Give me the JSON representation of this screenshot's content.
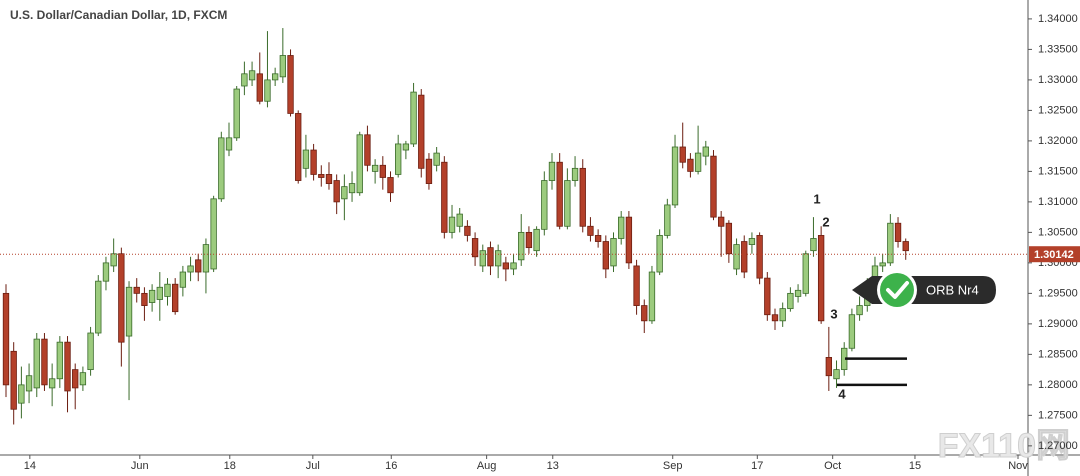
{
  "chart_data": {
    "type": "candlestick",
    "title": "U.S. Dollar/Canadian Dollar, 1D, FXCM",
    "up_color": "#9ccb7e",
    "down_color": "#b3402a",
    "open": [
      1.295,
      1.2855,
      1.277,
      1.279,
      1.2795,
      1.2875,
      1.2795,
      1.281,
      1.287,
      1.2825,
      1.28,
      1.2825,
      1.2885,
      1.297,
      1.2995,
      1.3015,
      1.288,
      1.296,
      1.295,
      1.2935,
      1.294,
      1.2945,
      1.2965,
      1.296,
      1.2985,
      1.3005,
      1.2985,
      1.299,
      1.3105,
      1.3185,
      1.3205,
      1.329,
      1.33,
      1.331,
      1.3265,
      1.33,
      1.3305,
      1.334,
      1.3245,
      1.3155,
      1.3185,
      1.3145,
      1.3145,
      1.3135,
      1.3105,
      1.3115,
      1.3115,
      1.321,
      1.315,
      1.316,
      1.314,
      1.3145,
      1.3185,
      1.3195,
      1.3275,
      1.317,
      1.316,
      1.3165,
      1.305,
      1.306,
      1.306,
      1.304,
      1.2995,
      1.3025,
      1.2995,
      1.3,
      1.299,
      1.3005,
      1.305,
      1.302,
      1.3055,
      1.3135,
      1.3165,
      1.306,
      1.3135,
      1.3155,
      1.306,
      1.3045,
      1.3035,
      1.2995,
      1.304,
      1.3075,
      1.2995,
      1.293,
      1.2905,
      1.2985,
      1.3045,
      1.3095,
      1.319,
      1.317,
      1.315,
      1.3175,
      1.3175,
      1.3075,
      1.3065,
      1.299,
      1.3035,
      1.303,
      1.3045,
      1.2975,
      1.2915,
      1.2905,
      1.2925,
      1.2945,
      1.295,
      1.302,
      1.3045,
      1.2845,
      1.281,
      1.2825,
      1.286,
      1.2915,
      1.293,
      1.2965,
      1.2995,
      1.3,
      1.3065,
      1.3035
    ],
    "high": [
      1.2965,
      1.287,
      1.283,
      1.2835,
      1.2885,
      1.2885,
      1.2835,
      1.288,
      1.288,
      1.2835,
      1.283,
      1.2895,
      1.298,
      1.301,
      1.304,
      1.3025,
      1.297,
      1.2975,
      1.296,
      1.2965,
      1.2985,
      1.2975,
      1.2975,
      1.2995,
      1.301,
      1.3015,
      1.304,
      1.311,
      1.3215,
      1.323,
      1.329,
      1.333,
      1.333,
      1.3345,
      1.338,
      1.332,
      1.3385,
      1.335,
      1.325,
      1.321,
      1.3195,
      1.316,
      1.3165,
      1.3145,
      1.3145,
      1.315,
      1.3215,
      1.3225,
      1.317,
      1.3175,
      1.315,
      1.321,
      1.32,
      1.3295,
      1.3285,
      1.318,
      1.319,
      1.3175,
      1.3095,
      1.309,
      1.307,
      1.305,
      1.303,
      1.3035,
      1.303,
      1.301,
      1.3015,
      1.308,
      1.306,
      1.306,
      1.315,
      1.318,
      1.318,
      1.3155,
      1.3175,
      1.317,
      1.3075,
      1.3055,
      1.3045,
      1.305,
      1.3085,
      1.3085,
      1.3005,
      1.294,
      1.2995,
      1.3055,
      1.3105,
      1.321,
      1.323,
      1.318,
      1.3225,
      1.32,
      1.3185,
      1.3085,
      1.307,
      1.304,
      1.3045,
      1.305,
      1.305,
      1.2985,
      1.2925,
      1.2935,
      1.296,
      1.2965,
      1.302,
      1.3075,
      1.306,
      1.2895,
      1.284,
      1.287,
      1.2925,
      1.2945,
      1.2975,
      1.301,
      1.3015,
      1.308,
      1.3075,
      1.304
    ],
    "low": [
      1.278,
      1.2735,
      1.2745,
      1.277,
      1.278,
      1.279,
      1.2765,
      1.2795,
      1.2755,
      1.276,
      1.279,
      1.2815,
      1.288,
      1.2955,
      1.2985,
      1.283,
      1.2775,
      1.2935,
      1.2905,
      1.292,
      1.2905,
      1.293,
      1.2915,
      1.2945,
      1.297,
      1.297,
      1.295,
      1.2985,
      1.31,
      1.3175,
      1.32,
      1.3275,
      1.329,
      1.326,
      1.3255,
      1.329,
      1.3295,
      1.324,
      1.313,
      1.314,
      1.3135,
      1.3125,
      1.312,
      1.308,
      1.307,
      1.31,
      1.311,
      1.315,
      1.313,
      1.312,
      1.31,
      1.314,
      1.317,
      1.319,
      1.314,
      1.312,
      1.315,
      1.304,
      1.304,
      1.305,
      1.3035,
      1.2995,
      1.2985,
      1.298,
      1.2975,
      1.297,
      1.298,
      1.2995,
      1.3015,
      1.301,
      1.3045,
      1.312,
      1.3055,
      1.3055,
      1.3125,
      1.305,
      1.3035,
      1.3025,
      1.2975,
      1.2985,
      1.303,
      1.299,
      1.2915,
      1.2885,
      1.29,
      1.298,
      1.304,
      1.309,
      1.3155,
      1.314,
      1.3145,
      1.316,
      1.307,
      1.301,
      1.3,
      1.298,
      1.2975,
      1.3015,
      1.2965,
      1.2905,
      1.289,
      1.2895,
      1.292,
      1.2935,
      1.2945,
      1.301,
      1.29,
      1.279,
      1.2795,
      1.2815,
      1.2855,
      1.2905,
      1.292,
      1.2955,
      1.2985,
      1.2995,
      1.3025,
      1.3005
    ],
    "close": [
      1.28,
      1.276,
      1.28,
      1.2815,
      1.2875,
      1.28,
      1.281,
      1.287,
      1.279,
      1.2795,
      1.282,
      1.2885,
      1.297,
      1.3,
      1.3015,
      1.287,
      1.296,
      1.295,
      1.293,
      1.2955,
      1.296,
      1.2965,
      1.292,
      1.2985,
      1.2995,
      1.2985,
      1.303,
      1.3105,
      1.3205,
      1.3205,
      1.3285,
      1.331,
      1.3315,
      1.3265,
      1.33,
      1.331,
      1.334,
      1.3245,
      1.3135,
      1.3185,
      1.3145,
      1.314,
      1.313,
      1.31,
      1.3125,
      1.313,
      1.321,
      1.316,
      1.316,
      1.314,
      1.3115,
      1.3195,
      1.3195,
      1.328,
      1.3155,
      1.313,
      1.318,
      1.305,
      1.3075,
      1.308,
      1.3045,
      1.301,
      1.302,
      1.2995,
      1.302,
      1.299,
      1.3,
      1.305,
      1.3025,
      1.3055,
      1.3135,
      1.3165,
      1.306,
      1.3135,
      1.3155,
      1.306,
      1.3045,
      1.3035,
      1.299,
      1.304,
      1.3075,
      1.3,
      1.293,
      1.2905,
      1.2985,
      1.3045,
      1.3095,
      1.319,
      1.3165,
      1.315,
      1.318,
      1.319,
      1.3075,
      1.306,
      1.3015,
      1.303,
      1.2985,
      1.304,
      1.2975,
      1.2915,
      1.2905,
      1.2925,
      1.295,
      1.2955,
      1.3015,
      1.304,
      1.2905,
      1.2815,
      1.2825,
      1.286,
      1.2915,
      1.293,
      1.2965,
      1.2995,
      1.3,
      1.3065,
      1.3035,
      1.302
    ],
    "xlim": [
      -0.78,
      132.9
    ],
    "xticks": [
      {
        "value": 3.1,
        "label": "14"
      },
      {
        "value": 17.4,
        "label": "Jun"
      },
      {
        "value": 29.1,
        "label": "18"
      },
      {
        "value": 39.9,
        "label": "Jul"
      },
      {
        "value": 50.1,
        "label": "16"
      },
      {
        "value": 62.5,
        "label": "Aug"
      },
      {
        "value": 71.1,
        "label": "13"
      },
      {
        "value": 86.7,
        "label": "Sep"
      },
      {
        "value": 97.7,
        "label": "17"
      },
      {
        "value": 107.5,
        "label": "Oct"
      },
      {
        "value": 118.2,
        "label": "15"
      },
      {
        "value": 131.6,
        "label": "Nov"
      }
    ],
    "ylim": [
      1.2685,
      1.3431
    ],
    "yticks": [
      {
        "value": 1.34,
        "label": "1.34000"
      },
      {
        "value": 1.335,
        "label": "1.33500"
      },
      {
        "value": 1.33,
        "label": "1.33000"
      },
      {
        "value": 1.325,
        "label": "1.32500"
      },
      {
        "value": 1.32,
        "label": "1.32000"
      },
      {
        "value": 1.315,
        "label": "1.31500"
      },
      {
        "value": 1.31,
        "label": "1.31000"
      },
      {
        "value": 1.305,
        "label": "1.30500"
      },
      {
        "value": 1.3,
        "label": "1.30000"
      },
      {
        "value": 1.295,
        "label": "1.29500"
      },
      {
        "value": 1.29,
        "label": "1.29000"
      },
      {
        "value": 1.285,
        "label": "1.28500"
      },
      {
        "value": 1.28,
        "label": "1.28000"
      },
      {
        "value": 1.275,
        "label": "1.27500"
      },
      {
        "value": 1.27,
        "label": "1.27000"
      }
    ],
    "last_price": 1.30142,
    "levels": [
      1.2843,
      1.28
    ],
    "annotations": [
      "1",
      "2",
      "3",
      "4"
    ],
    "callout": "ORB Nr4",
    "watermark": "FX110网"
  }
}
